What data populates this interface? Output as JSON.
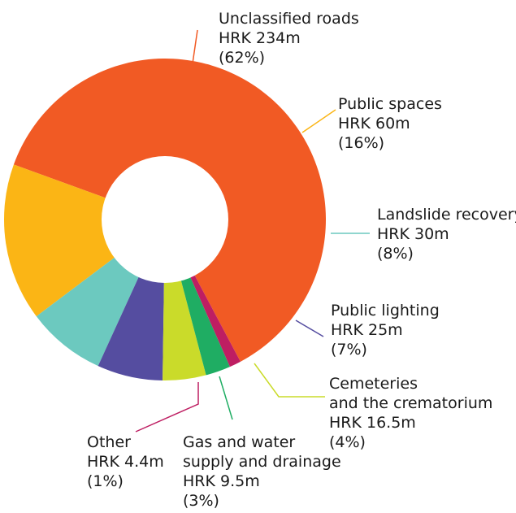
{
  "chart_data": {
    "type": "pie",
    "title": "",
    "slices": [
      {
        "name": "Unclassified roads",
        "value": 234,
        "amount": "HRK 234m",
        "percent": "(62%)",
        "color": "#F15A24"
      },
      {
        "name": "Public spaces",
        "value": 60,
        "amount": "HRK 60m",
        "percent": "(16%)",
        "color": "#FBB515"
      },
      {
        "name": "Landslide recovery",
        "value": 30,
        "amount": "HRK 30m",
        "percent": "(8%)",
        "color": "#6CC9BF"
      },
      {
        "name": "Public lighting",
        "value": 25,
        "amount": "HRK 25m",
        "percent": "(7%)",
        "color": "#554DA0"
      },
      {
        "name": "Cemeteries and the crematorium",
        "value": 16.5,
        "amount": "HRK 16.5m",
        "percent": "(4%)",
        "color": "#CADB2A"
      },
      {
        "name": "Gas and water supply and drainage",
        "value": 9.5,
        "amount": "HRK 9.5m",
        "percent": "(3%)",
        "color": "#1FAD63"
      },
      {
        "name": "Other",
        "value": 4.4,
        "amount": "HRK 4.4m",
        "percent": "(1%)",
        "color": "#BE1E62"
      }
    ]
  }
}
